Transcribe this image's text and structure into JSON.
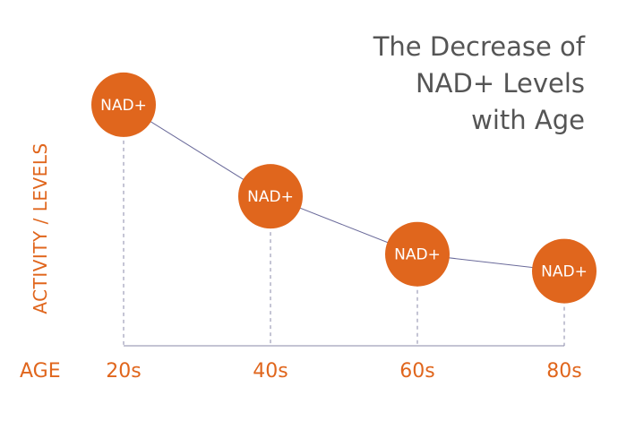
{
  "chart_data": {
    "type": "line",
    "title_lines": [
      "The Decrease of",
      "NAD+ Levels",
      "with Age"
    ],
    "ylabel": "ACTIVITY / LEVELS",
    "xlabel": "AGE",
    "categories": [
      "20s",
      "40s",
      "60s",
      "80s"
    ],
    "marker_label": "NAD+",
    "values": [
      100,
      62,
      38,
      31
    ],
    "ylim": [
      0,
      110
    ],
    "grid": false,
    "colors": {
      "marker": "#e0661d",
      "line": "#6a6a9a",
      "axis": "#8a8aaa",
      "title": "#555555"
    }
  }
}
